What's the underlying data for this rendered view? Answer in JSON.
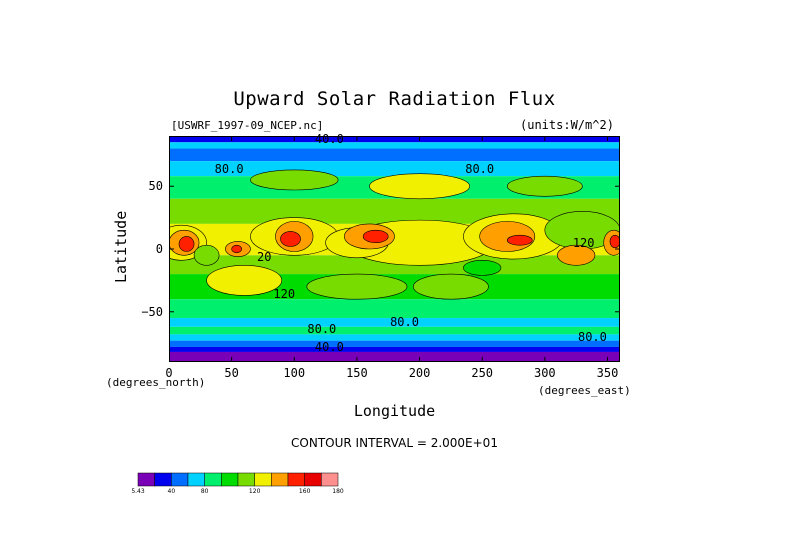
{
  "chart_data": {
    "type": "heatmap",
    "title": "Upward Solar Radiation Flux",
    "file_label": "[USWRF_1997-09_NCEP.nc]",
    "units_label": "(units:W/m^2)",
    "xlabel": "Longitude",
    "ylabel": "Latitude",
    "x_unit": "(degrees_east)",
    "y_unit": "(degrees_north)",
    "xlim": [
      0,
      360
    ],
    "ylim": [
      -90,
      90
    ],
    "x_ticks": [
      "0",
      "50",
      "100",
      "150",
      "200",
      "250",
      "300",
      "350"
    ],
    "y_ticks": [
      "50",
      "0",
      "-50"
    ],
    "contour_interval": "CONTOUR INTERVAL = 2.000E+01",
    "contour_labels": [
      {
        "text": "40.0",
        "lon": 128,
        "lat": 88
      },
      {
        "text": "80.0",
        "lon": 48,
        "lat": 64
      },
      {
        "text": "80.0",
        "lon": 248,
        "lat": 64
      },
      {
        "text": "120",
        "lon": 331,
        "lat": 5
      },
      {
        "text": "20",
        "lon": 76,
        "lat": -6
      },
      {
        "text": "120",
        "lon": 92,
        "lat": -36
      },
      {
        "text": "80.0",
        "lon": 188,
        "lat": -58
      },
      {
        "text": "80.0",
        "lon": 122,
        "lat": -64
      },
      {
        "text": "80.0",
        "lon": 338,
        "lat": -70
      },
      {
        "text": "40.0",
        "lon": 128,
        "lat": -78
      }
    ],
    "legend": {
      "labels": [
        "5.43",
        "40",
        "80",
        "120",
        "160",
        "180"
      ],
      "colors": [
        "#7a00b8",
        "#0000ee",
        "#006eff",
        "#00d2ff",
        "#00f06e",
        "#00dc00",
        "#78dc00",
        "#f0f000",
        "#ffa000",
        "#ff2000",
        "#e80000",
        "#ff9090"
      ]
    }
  }
}
